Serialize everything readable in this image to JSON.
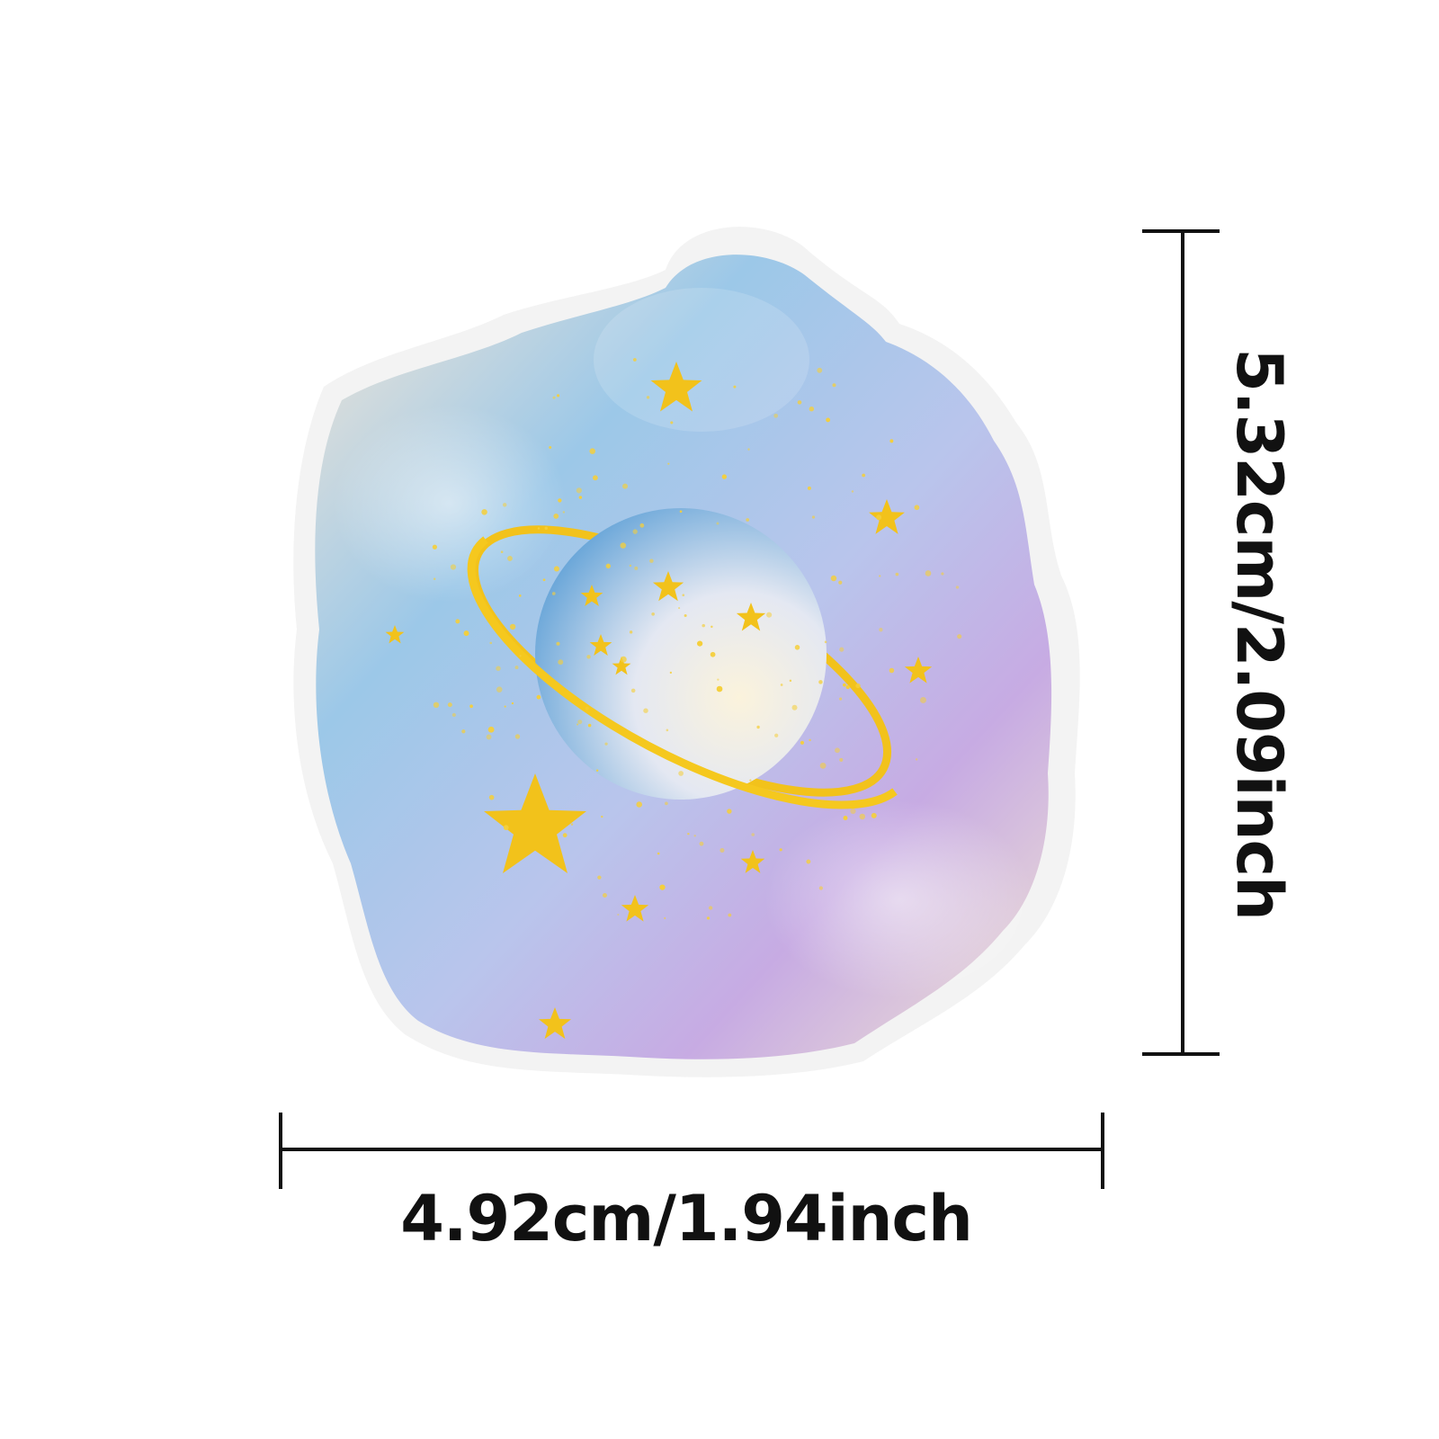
{
  "product": {
    "name": "planet sticker",
    "colors": {
      "cloud_blue": "#8ec3e6",
      "cloud_purple": "#c4a9e3",
      "cloud_cream": "#f3e6d6",
      "gold": "#f2c21b",
      "border": "#f2f2f2"
    }
  },
  "dimensions": {
    "width_label": "4.92cm/1.94inch",
    "height_label": "5.32cm/2.09inch"
  }
}
